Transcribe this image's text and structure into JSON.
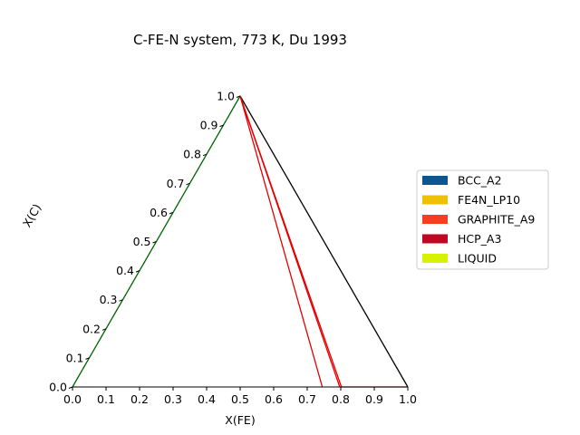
{
  "chart_data": {
    "type": "ternary",
    "title": "C-FE-N system, 773 K, Du 1993",
    "xlabel": "X(FE)",
    "ylabel": "X(C)",
    "x_ticks": [
      "0.0",
      "0.1",
      "0.2",
      "0.3",
      "0.4",
      "0.5",
      "0.6",
      "0.7",
      "0.8",
      "0.9",
      "1.0"
    ],
    "y_ticks": [
      "0.0",
      "0.1",
      "0.2",
      "0.3",
      "0.4",
      "0.5",
      "0.6",
      "0.7",
      "0.8",
      "0.9",
      "1.0"
    ],
    "xlim": [
      0,
      1
    ],
    "ylim": [
      0,
      1
    ],
    "grid": false,
    "legend_position": "right",
    "legend": [
      {
        "label": "BCC_A2",
        "color": "#0a5694"
      },
      {
        "label": "FE4N_LP10",
        "color": "#f0c005"
      },
      {
        "label": "GRAPHITE_A9",
        "color": "#f2401d"
      },
      {
        "label": "HCP_A3",
        "color": "#bf0622"
      },
      {
        "label": "LIQUID",
        "color": "#d6f200"
      }
    ],
    "tie_lines": [
      {
        "name": "C-Fe edge",
        "color": "#000000",
        "x": [
          0.5,
          1.0
        ],
        "y": [
          1.0,
          0.0
        ]
      },
      {
        "name": "C-N edge",
        "color": "#006400",
        "x": [
          0.0,
          0.5
        ],
        "y": [
          0.0,
          1.0
        ]
      },
      {
        "name": "tie line 1",
        "color": "#e60000",
        "x": [
          0.5,
          0.745
        ],
        "y": [
          1.0,
          0.0
        ]
      },
      {
        "name": "tie line 2",
        "color": "#e60000",
        "x": [
          0.5,
          0.797
        ],
        "y": [
          1.0,
          0.0
        ]
      },
      {
        "name": "tie line 3",
        "color": "#e60000",
        "x": [
          0.5,
          0.802
        ],
        "y": [
          1.0,
          0.0
        ]
      },
      {
        "name": "base segment",
        "color": "#cc0000",
        "x": [
          0.8,
          1.0
        ],
        "y": [
          0.0,
          0.0
        ]
      }
    ]
  }
}
